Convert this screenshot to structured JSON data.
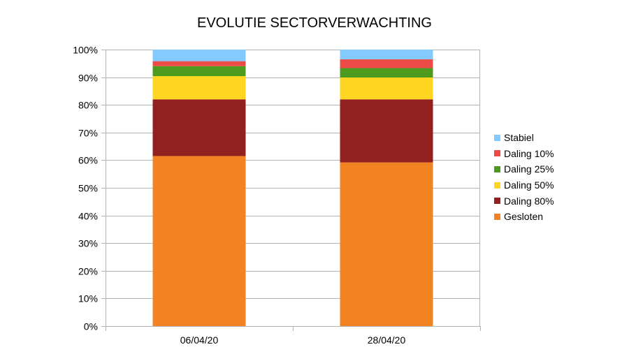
{
  "chart_data": {
    "type": "bar",
    "stacked": true,
    "percent_stacked": true,
    "title": "EVOLUTIE SECTORVERWACHTING",
    "xlabel": "",
    "ylabel": "",
    "categories": [
      "06/04/20",
      "28/04/20"
    ],
    "ylim": [
      0,
      100
    ],
    "yticks": [
      "0%",
      "10%",
      "20%",
      "30%",
      "40%",
      "50%",
      "60%",
      "70%",
      "80%",
      "90%",
      "100%"
    ],
    "grid": true,
    "legend_position": "right",
    "series": [
      {
        "name": "Gesloten",
        "color": "#f28322",
        "values": [
          61.5,
          59.2
        ]
      },
      {
        "name": "Daling 80%",
        "color": "#922020",
        "values": [
          20.5,
          22.8
        ]
      },
      {
        "name": "Daling 50%",
        "color": "#fed521",
        "values": [
          8.4,
          7.9
        ]
      },
      {
        "name": "Daling 25%",
        "color": "#4c9b1f",
        "values": [
          3.6,
          3.4
        ]
      },
      {
        "name": "Daling 10%",
        "color": "#ed4b47",
        "values": [
          1.8,
          3.2
        ]
      },
      {
        "name": "Stabiel",
        "color": "#83caff",
        "values": [
          4.2,
          3.5
        ]
      }
    ]
  }
}
